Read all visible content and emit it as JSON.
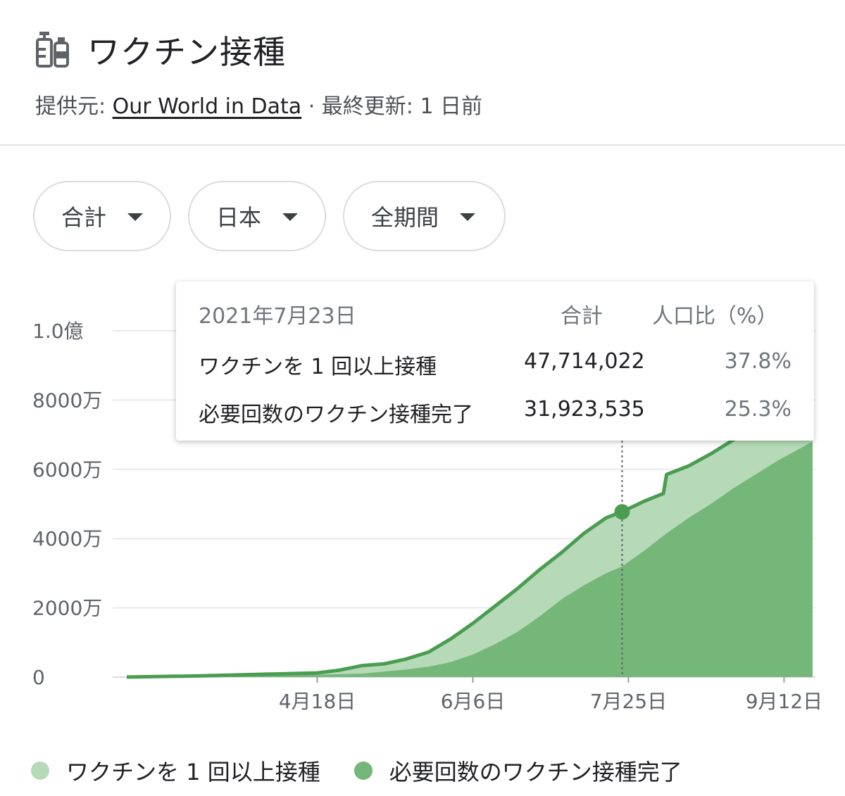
{
  "header": {
    "title": "ワクチン接種",
    "icon": "vaccine-icon",
    "source_prefix": "提供元: ",
    "source_link": "Our World in Data",
    "source_suffix": " · 最終更新: 1 日前"
  },
  "filters": [
    {
      "label": "合計"
    },
    {
      "label": "日本"
    },
    {
      "label": "全期間"
    }
  ],
  "tooltip": {
    "date": "2021年7月23日",
    "col_total": "合計",
    "col_pct": "人口比（%）",
    "rows": [
      {
        "label": "ワクチンを 1 回以上接種",
        "value": "47,714,022",
        "pct": "37.8%"
      },
      {
        "label": "必要回数のワクチン接種完了",
        "value": "31,923,535",
        "pct": "25.3%"
      }
    ]
  },
  "colors": {
    "first_dose": "#b6dab8",
    "fully": "#74b779",
    "line": "#4a9d50",
    "grid": "#e8eaed"
  },
  "chart_data": {
    "type": "area",
    "y_tick_labels": [
      "0",
      "2000万",
      "4000万",
      "6000万",
      "8000万",
      "1.0億"
    ],
    "ylim": [
      0,
      100000000
    ],
    "x_tick_labels": [
      "4月18日",
      "6月6日",
      "7月25日",
      "9月12日"
    ],
    "x_tick_dates": [
      "2021-04-18",
      "2021-06-06",
      "2021-07-25",
      "2021-09-12"
    ],
    "x_range": [
      "2021-02-17",
      "2021-09-21"
    ],
    "highlight": {
      "date": "2021-07-23",
      "value": 47714022
    },
    "series": [
      {
        "name": "ワクチンを 1 回以上接種",
        "points": [
          [
            "2021-02-17",
            0
          ],
          [
            "2021-03-10",
            300000
          ],
          [
            "2021-03-31",
            800000
          ],
          [
            "2021-04-18",
            1200000
          ],
          [
            "2021-04-25",
            2000000
          ],
          [
            "2021-05-02",
            3300000
          ],
          [
            "2021-05-09",
            3800000
          ],
          [
            "2021-05-16",
            5200000
          ],
          [
            "2021-05-23",
            7200000
          ],
          [
            "2021-05-30",
            11000000
          ],
          [
            "2021-06-06",
            15500000
          ],
          [
            "2021-06-13",
            20500000
          ],
          [
            "2021-06-20",
            25500000
          ],
          [
            "2021-06-27",
            31000000
          ],
          [
            "2021-07-04",
            36000000
          ],
          [
            "2021-07-11",
            41500000
          ],
          [
            "2021-07-18",
            46000000
          ],
          [
            "2021-07-23",
            47714022
          ],
          [
            "2021-07-30",
            50800000
          ],
          [
            "2021-08-05",
            53000000
          ],
          [
            "2021-08-06",
            58500000
          ],
          [
            "2021-08-13",
            61000000
          ],
          [
            "2021-08-20",
            64500000
          ],
          [
            "2021-08-27",
            68500000
          ],
          [
            "2021-09-03",
            72000000
          ],
          [
            "2021-09-10",
            75500000
          ],
          [
            "2021-09-21",
            80000000
          ]
        ]
      },
      {
        "name": "必要回数のワクチン接種完了",
        "points": [
          [
            "2021-02-17",
            0
          ],
          [
            "2021-03-10",
            50000
          ],
          [
            "2021-03-31",
            400000
          ],
          [
            "2021-04-18",
            700000
          ],
          [
            "2021-05-02",
            1000000
          ],
          [
            "2021-05-16",
            2200000
          ],
          [
            "2021-05-23",
            3000000
          ],
          [
            "2021-05-30",
            4300000
          ],
          [
            "2021-06-06",
            6500000
          ],
          [
            "2021-06-13",
            9500000
          ],
          [
            "2021-06-20",
            13000000
          ],
          [
            "2021-06-27",
            17500000
          ],
          [
            "2021-07-04",
            22500000
          ],
          [
            "2021-07-11",
            26500000
          ],
          [
            "2021-07-18",
            30000000
          ],
          [
            "2021-07-23",
            31923535
          ],
          [
            "2021-07-30",
            36500000
          ],
          [
            "2021-08-06",
            41500000
          ],
          [
            "2021-08-13",
            46000000
          ],
          [
            "2021-08-20",
            50000000
          ],
          [
            "2021-08-27",
            54500000
          ],
          [
            "2021-09-03",
            58500000
          ],
          [
            "2021-09-10",
            62500000
          ],
          [
            "2021-09-21",
            68000000
          ]
        ]
      }
    ]
  },
  "legend": [
    {
      "label": "ワクチンを 1 回以上接種",
      "color": "#b6dab8"
    },
    {
      "label": "必要回数のワクチン接種完了",
      "color": "#74b779"
    }
  ]
}
